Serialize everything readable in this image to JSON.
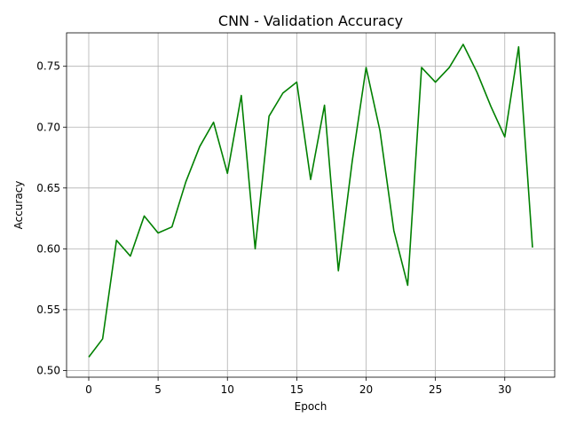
{
  "chart_data": {
    "type": "line",
    "title": "CNN - Validation Accuracy",
    "xlabel": "Epoch",
    "ylabel": "Accuracy",
    "xlim": [
      -1.6,
      33.6
    ],
    "ylim": [
      0.4945,
      0.7775
    ],
    "xticks": [
      0,
      5,
      10,
      15,
      20,
      25,
      30
    ],
    "yticks": [
      0.5,
      0.55,
      0.6,
      0.65,
      0.7,
      0.75
    ],
    "grid": true,
    "series": [
      {
        "color": "#008000",
        "x": [
          0,
          1,
          2,
          3,
          4,
          5,
          6,
          7,
          8,
          9,
          10,
          11,
          12,
          13,
          14,
          15,
          16,
          17,
          18,
          19,
          20,
          21,
          22,
          23,
          24,
          25,
          26,
          27,
          28,
          29,
          30,
          31,
          32
        ],
        "values": [
          0.511,
          0.526,
          0.607,
          0.594,
          0.627,
          0.613,
          0.618,
          0.655,
          0.684,
          0.704,
          0.662,
          0.726,
          0.6,
          0.709,
          0.728,
          0.737,
          0.657,
          0.718,
          0.582,
          0.672,
          0.749,
          0.697,
          0.615,
          0.57,
          0.749,
          0.737,
          0.749,
          0.768,
          0.745,
          0.717,
          0.692,
          0.766,
          0.601
        ]
      }
    ]
  }
}
